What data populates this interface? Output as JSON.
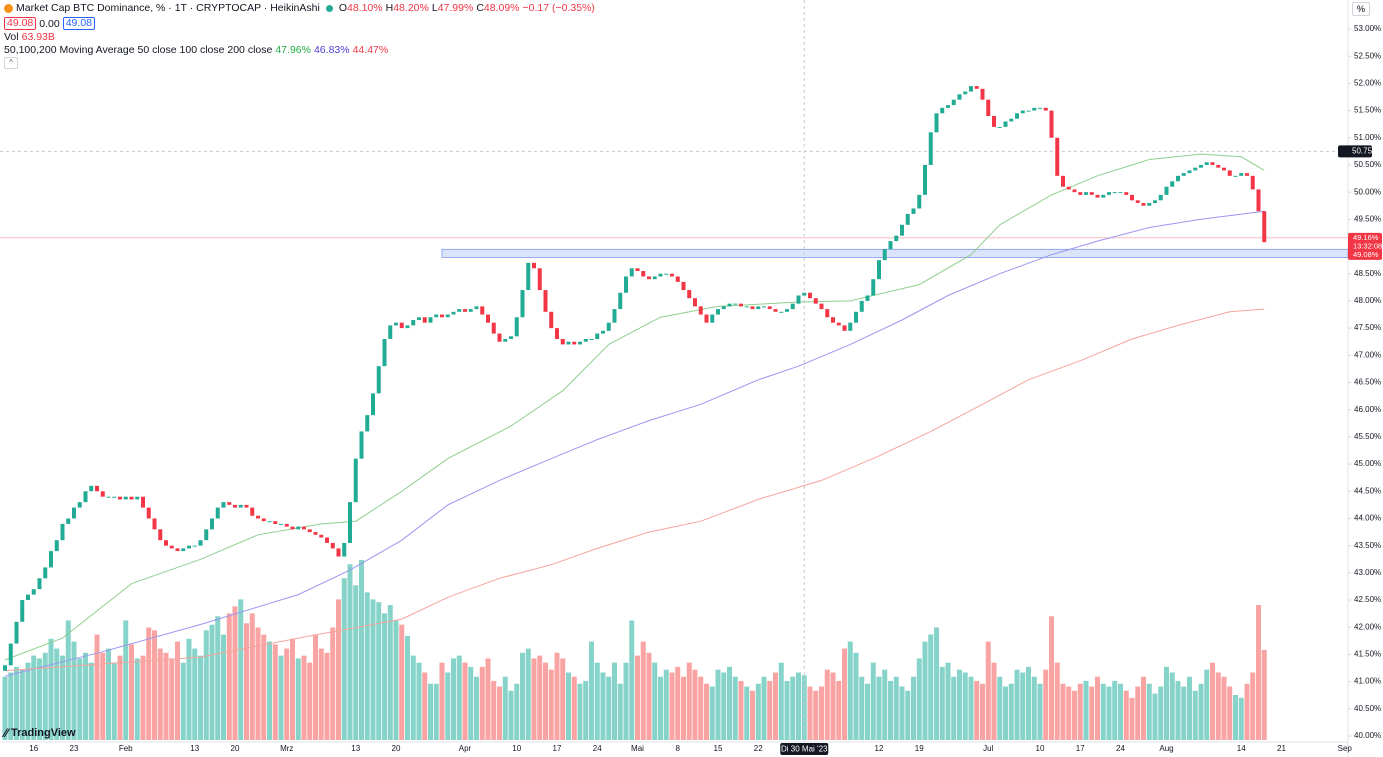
{
  "chart_data": {
    "type": "candlestick",
    "title": "Market Cap BTC Dominance, % · 1T · CRYPTOCAP · HeikinAshi",
    "ohlc": [
      {
        "key": "O",
        "value": "48.10%"
      },
      {
        "key": "H",
        "value": "48.20%"
      },
      {
        "key": "L",
        "value": "47.99%"
      },
      {
        "key": "C",
        "value": "48.09%"
      }
    ],
    "change": "−0.17 (−0.35%)",
    "row2": [
      "49.08",
      "0.00",
      "49.08"
    ],
    "ma_title": "50,100,200 Moving Average 50 close 100 close 200 close",
    "ma_values": [
      "47.96%",
      "46.83%",
      "44.47%"
    ],
    "logo": "TradingView",
    "unit_button": "%",
    "up_color": "#22ab94",
    "down_color": "#f23645",
    "volume_up_color": "#85d3c9",
    "volume_down_color": "#f9a3a3",
    "open": [
      41.2,
      41.3,
      41.7,
      42.1,
      42.5,
      42.6,
      42.7,
      42.9,
      43.1,
      43.4,
      43.6,
      43.9,
      44.0,
      44.2,
      44.3,
      44.5,
      44.6,
      44.5,
      44.4,
      44.4,
      44.4,
      44.35,
      44.4,
      44.35,
      44.4,
      44.2,
      44.0,
      43.8,
      43.6,
      43.5,
      43.45,
      43.4,
      43.45,
      43.5,
      43.5,
      43.6,
      43.8,
      44.0,
      44.2,
      44.3,
      44.25,
      44.2,
      44.25,
      44.2,
      44.05,
      44.0,
      43.95,
      43.95,
      43.9,
      43.9,
      43.85,
      43.8,
      43.85,
      43.8,
      43.75,
      43.7,
      43.65,
      43.55,
      43.45,
      43.3,
      43.55,
      44.3,
      45.1,
      45.6,
      45.9,
      46.3,
      46.8,
      47.3,
      47.55,
      47.6,
      47.5,
      47.55,
      47.65,
      47.7,
      47.6,
      47.7,
      47.75,
      47.7,
      47.75,
      47.8,
      47.85,
      47.8,
      47.85,
      47.9,
      47.75,
      47.6,
      47.4,
      47.25,
      47.3,
      47.35,
      47.7,
      48.2,
      48.7,
      48.6,
      48.2,
      47.8,
      47.5,
      47.3,
      47.2,
      47.25,
      47.2,
      47.25,
      47.3,
      47.3,
      47.4,
      47.45,
      47.6,
      47.85,
      48.15,
      48.45,
      48.6,
      48.55,
      48.45,
      48.4,
      48.45,
      48.5,
      48.5,
      48.45,
      48.35,
      48.2,
      48.05,
      47.9,
      47.75,
      47.6,
      47.75,
      47.85,
      47.9,
      47.95,
      47.95,
      47.9,
      47.9,
      47.85,
      47.9,
      47.9,
      47.85,
      47.8,
      47.8,
      47.85,
      47.95,
      48.1,
      48.15,
      48.05,
      47.95,
      47.85,
      47.7,
      47.6,
      47.55,
      47.45,
      47.6,
      47.8,
      48.0,
      48.1,
      48.4,
      48.75,
      48.95,
      49.1,
      49.2,
      49.4,
      49.6,
      49.7,
      49.95,
      50.5,
      51.1,
      51.45,
      51.55,
      51.6,
      51.7,
      51.8,
      51.85,
      51.95,
      51.9,
      51.7,
      51.4,
      51.2,
      51.2,
      51.3,
      51.35,
      51.45,
      51.5,
      51.5,
      51.55,
      51.55,
      51.5,
      51.0,
      50.3,
      50.1,
      50.05,
      50.0,
      49.95,
      50.0,
      49.95,
      49.9,
      49.95,
      50.0,
      50.0,
      50.0,
      49.95,
      49.85,
      49.8,
      49.75,
      49.8,
      49.85,
      49.95,
      50.1,
      50.2,
      50.3,
      50.35,
      50.4,
      50.45,
      50.5,
      50.55,
      50.5,
      50.45,
      50.4,
      50.3,
      50.3,
      50.35,
      50.3,
      50.05,
      49.65
    ],
    "close": [
      41.3,
      41.7,
      42.1,
      42.5,
      42.6,
      42.7,
      42.9,
      43.1,
      43.4,
      43.6,
      43.9,
      44.0,
      44.2,
      44.3,
      44.5,
      44.6,
      44.5,
      44.4,
      44.4,
      44.4,
      44.35,
      44.4,
      44.35,
      44.4,
      44.2,
      44.0,
      43.8,
      43.6,
      43.5,
      43.45,
      43.4,
      43.45,
      43.5,
      43.5,
      43.6,
      43.8,
      44.0,
      44.2,
      44.3,
      44.25,
      44.2,
      44.25,
      44.2,
      44.05,
      44.0,
      43.95,
      43.95,
      43.9,
      43.9,
      43.85,
      43.8,
      43.85,
      43.8,
      43.75,
      43.7,
      43.65,
      43.55,
      43.45,
      43.3,
      43.55,
      44.3,
      45.1,
      45.6,
      45.9,
      46.3,
      46.8,
      47.3,
      47.55,
      47.6,
      47.5,
      47.55,
      47.65,
      47.7,
      47.6,
      47.7,
      47.75,
      47.7,
      47.75,
      47.8,
      47.85,
      47.8,
      47.85,
      47.9,
      47.75,
      47.6,
      47.4,
      47.25,
      47.3,
      47.35,
      47.7,
      48.2,
      48.7,
      48.6,
      48.2,
      47.8,
      47.5,
      47.3,
      47.2,
      47.25,
      47.2,
      47.25,
      47.3,
      47.3,
      47.4,
      47.45,
      47.6,
      47.85,
      48.15,
      48.45,
      48.6,
      48.55,
      48.45,
      48.4,
      48.45,
      48.5,
      48.5,
      48.45,
      48.35,
      48.2,
      48.05,
      47.9,
      47.75,
      47.6,
      47.75,
      47.85,
      47.9,
      47.95,
      47.95,
      47.9,
      47.9,
      47.85,
      47.9,
      47.9,
      47.85,
      47.8,
      47.8,
      47.85,
      47.95,
      48.1,
      48.15,
      48.05,
      47.95,
      47.85,
      47.7,
      47.6,
      47.55,
      47.45,
      47.6,
      47.8,
      48.0,
      48.1,
      48.4,
      48.75,
      48.95,
      49.1,
      49.2,
      49.4,
      49.6,
      49.7,
      49.95,
      50.5,
      51.1,
      51.45,
      51.55,
      51.6,
      51.7,
      51.8,
      51.85,
      51.95,
      51.9,
      51.7,
      51.4,
      51.2,
      51.2,
      51.3,
      51.35,
      51.45,
      51.5,
      51.5,
      51.55,
      51.55,
      51.5,
      51.0,
      50.3,
      50.1,
      50.05,
      50.0,
      49.95,
      50.0,
      49.95,
      49.9,
      49.95,
      50.0,
      50.0,
      50.0,
      49.95,
      49.85,
      49.8,
      49.75,
      49.8,
      49.85,
      49.95,
      50.1,
      50.2,
      50.3,
      50.35,
      50.4,
      50.45,
      50.5,
      50.55,
      50.5,
      50.45,
      50.4,
      50.3,
      50.3,
      50.35,
      50.3,
      50.05,
      49.65,
      49.08
    ],
    "volume": {
      "name": "Vol",
      "label": "63.93B",
      "values": [
        45,
        48,
        52,
        50,
        55,
        60,
        58,
        62,
        72,
        65,
        60,
        85,
        70,
        58,
        62,
        55,
        75,
        62,
        65,
        55,
        60,
        85,
        68,
        58,
        60,
        80,
        78,
        65,
        62,
        58,
        70,
        55,
        72,
        65,
        60,
        78,
        82,
        88,
        75,
        90,
        95,
        100,
        83,
        90,
        80,
        75,
        70,
        68,
        60,
        65,
        72,
        58,
        60,
        55,
        75,
        65,
        62,
        80,
        100,
        115,
        125,
        110,
        128,
        105,
        100,
        98,
        90,
        96,
        85,
        82,
        74,
        60,
        55,
        48,
        40,
        40,
        55,
        48,
        58,
        60,
        55,
        52,
        45,
        52,
        58,
        42,
        38,
        45,
        35,
        40,
        62,
        65,
        58,
        60,
        55,
        50,
        62,
        58,
        48,
        45,
        40,
        42,
        70,
        55,
        48,
        45,
        55,
        40,
        55,
        85,
        60,
        70,
        62,
        55,
        45,
        50,
        48,
        52,
        45,
        55,
        50,
        45,
        40,
        38,
        50,
        48,
        52,
        45,
        42,
        38,
        35,
        40,
        45,
        42,
        48,
        55,
        42,
        45,
        48,
        46,
        38,
        35,
        38,
        50,
        48,
        42,
        65,
        70,
        62,
        45,
        40,
        55,
        45,
        50,
        42,
        45,
        38,
        35,
        45,
        58,
        70,
        75,
        80,
        52,
        55,
        45,
        50,
        48,
        45,
        42,
        40,
        70,
        55,
        45,
        38,
        40,
        50,
        48,
        52,
        45,
        40,
        50,
        88,
        55,
        40,
        38,
        35,
        40,
        42,
        38,
        45,
        40,
        38,
        42,
        40,
        35,
        30,
        38,
        45,
        40,
        33,
        38,
        52,
        48,
        42,
        38,
        45,
        35,
        40,
        50,
        55,
        48,
        45,
        38,
        32,
        30,
        40,
        48,
        96,
        64
      ]
    },
    "series": [
      {
        "color": "#8fcf8f",
        "x": [
          0,
          10,
          22,
          34,
          44,
          55,
          61,
          69,
          77,
          88,
          97,
          105,
          114,
          124,
          138,
          147,
          159,
          168,
          173,
          182,
          190,
          199,
          208,
          215,
          219
        ],
        "values": [
          41.4,
          41.8,
          42.8,
          43.25,
          43.7,
          43.9,
          43.95,
          44.5,
          45.1,
          45.7,
          46.35,
          47.2,
          47.7,
          47.9,
          47.98,
          48.0,
          48.3,
          48.85,
          49.4,
          49.95,
          50.3,
          50.6,
          50.7,
          50.65,
          50.4
        ]
      },
      {
        "color": "#9a96f0",
        "x": [
          0,
          17,
          34,
          51,
          60,
          69,
          77,
          86,
          95,
          103,
          112,
          121,
          131,
          138,
          147,
          156,
          164,
          173,
          182,
          190,
          199,
          208,
          219
        ],
        "values": [
          41.1,
          41.55,
          42.05,
          42.6,
          43.05,
          43.6,
          44.25,
          44.7,
          45.1,
          45.45,
          45.8,
          46.1,
          46.55,
          46.8,
          47.2,
          47.65,
          48.1,
          48.5,
          48.85,
          49.1,
          49.35,
          49.5,
          49.65
        ]
      },
      {
        "color": "#f4a59c",
        "x": [
          0,
          34,
          51,
          69,
          77,
          86,
          95,
          103,
          112,
          121,
          131,
          142,
          152,
          161,
          170,
          178,
          187,
          196,
          204,
          213,
          219
        ],
        "values": [
          41.2,
          41.45,
          41.8,
          42.15,
          42.55,
          42.9,
          43.15,
          43.45,
          43.75,
          43.95,
          44.35,
          44.7,
          45.15,
          45.6,
          46.1,
          46.55,
          46.9,
          47.3,
          47.55,
          47.8,
          47.85
        ]
      }
    ],
    "zone": {
      "from": 76,
      "range": [
        48.8,
        48.95
      ],
      "color": "#b9c9f5"
    },
    "crosshair": {
      "x": 139,
      "x_label": "Di 30 Mai '23",
      "y": 50.75,
      "y_label": "50.75%"
    },
    "price_line": 49.16,
    "price_tag": [
      "49.16%",
      "13:32:08",
      "49.08%"
    ],
    "ylim": [
      40,
      53
    ],
    "yticks": [
      {
        "value": 40,
        "label": "40.00%"
      },
      {
        "value": 40.5,
        "label": "40.50%"
      },
      {
        "value": 41,
        "label": "41.00%"
      },
      {
        "value": 41.5,
        "label": "41.50%"
      },
      {
        "value": 42,
        "label": "42.00%"
      },
      {
        "value": 42.5,
        "label": "42.50%"
      },
      {
        "value": 43,
        "label": "43.00%"
      },
      {
        "value": 43.5,
        "label": "43.50%"
      },
      {
        "value": 44,
        "label": "44.00%"
      },
      {
        "value": 44.5,
        "label": "44.50%"
      },
      {
        "value": 45,
        "label": "45.00%"
      },
      {
        "value": 45.5,
        "label": "45.50%"
      },
      {
        "value": 46,
        "label": "46.00%"
      },
      {
        "value": 46.5,
        "label": "46.50%"
      },
      {
        "value": 47,
        "label": "47.00%"
      },
      {
        "value": 47.5,
        "label": "47.50%"
      },
      {
        "value": 48,
        "label": "48.00%"
      },
      {
        "value": 48.5,
        "label": "48.50%"
      },
      {
        "value": 49,
        "label": "49.00%"
      },
      {
        "value": 49.5,
        "label": "49.50%"
      },
      {
        "value": 50,
        "label": "50.00%"
      },
      {
        "value": 50.5,
        "label": "50.50%"
      },
      {
        "value": 51,
        "label": "51.00%"
      },
      {
        "value": 51.5,
        "label": "51.50%"
      },
      {
        "value": 52,
        "label": "52.00%"
      },
      {
        "value": 52.5,
        "label": "52.50%"
      },
      {
        "value": 53,
        "label": "53.00%"
      }
    ],
    "xticks": [
      {
        "value": 5,
        "label": "16"
      },
      {
        "value": 12,
        "label": "23"
      },
      {
        "value": 21,
        "label": "Feb"
      },
      {
        "value": 33,
        "label": "13"
      },
      {
        "value": 40,
        "label": "20"
      },
      {
        "value": 49,
        "label": "Mrz"
      },
      {
        "value": 61,
        "label": "13"
      },
      {
        "value": 68,
        "label": "20"
      },
      {
        "value": 80,
        "label": "Apr"
      },
      {
        "value": 89,
        "label": "10"
      },
      {
        "value": 96,
        "label": "17"
      },
      {
        "value": 103,
        "label": "24"
      },
      {
        "value": 110,
        "label": "Mai"
      },
      {
        "value": 117,
        "label": "8"
      },
      {
        "value": 124,
        "label": "15"
      },
      {
        "value": 131,
        "label": "22"
      },
      {
        "value": 152,
        "label": "12"
      },
      {
        "value": 159,
        "label": "19"
      },
      {
        "value": 171,
        "label": "Jul"
      },
      {
        "value": 180,
        "label": "10"
      },
      {
        "value": 187,
        "label": "17"
      },
      {
        "value": 194,
        "label": "24"
      },
      {
        "value": 202,
        "label": "Aug"
      },
      {
        "value": 215,
        "label": "14"
      },
      {
        "value": 222,
        "label": "21"
      },
      {
        "value": 233,
        "label": "Sep"
      }
    ],
    "grid": false
  }
}
